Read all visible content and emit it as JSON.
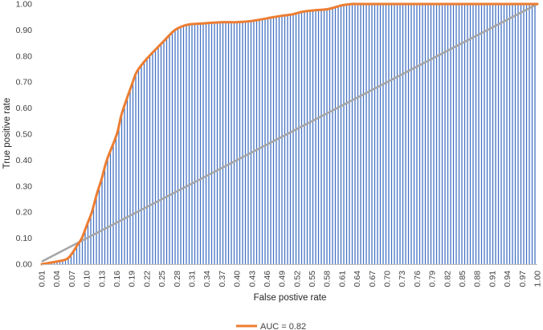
{
  "chart_data": {
    "type": "area",
    "title": "",
    "xlabel": "False postive rate",
    "ylabel": "True positive rate",
    "xlim": [
      0.01,
      1.0
    ],
    "ylim": [
      0.0,
      1.0
    ],
    "y_ticks": [
      "0.00",
      "0.10",
      "0.20",
      "0.30",
      "0.40",
      "0.50",
      "0.60",
      "0.70",
      "0.80",
      "0.90",
      "1.00"
    ],
    "x_ticks": [
      "0.01",
      "0.04",
      "0.07",
      "0.10",
      "0.13",
      "0.16",
      "0.19",
      "0.22",
      "0.25",
      "0.28",
      "0.31",
      "0.34",
      "0.37",
      "0.40",
      "0.43",
      "0.46",
      "0.49",
      "0.52",
      "0.55",
      "0.58",
      "0.61",
      "0.64",
      "0.67",
      "0.70",
      "0.73",
      "0.76",
      "0.79",
      "0.82",
      "0.85",
      "0.88",
      "0.91",
      "0.94",
      "0.97",
      "1.00"
    ],
    "series": [
      {
        "name": "AUC = 0.82",
        "role": "roc-curve",
        "color": "#ED7D31",
        "x": [
          0.01,
          0.04,
          0.06,
          0.07,
          0.08,
          0.09,
          0.1,
          0.11,
          0.12,
          0.13,
          0.14,
          0.16,
          0.17,
          0.19,
          0.2,
          0.22,
          0.25,
          0.27,
          0.28,
          0.3,
          0.33,
          0.37,
          0.4,
          0.43,
          0.46,
          0.49,
          0.51,
          0.53,
          0.55,
          0.58,
          0.6,
          0.61,
          0.63,
          0.67,
          1.0
        ],
        "y": [
          0.0,
          0.01,
          0.02,
          0.04,
          0.07,
          0.1,
          0.15,
          0.2,
          0.27,
          0.33,
          0.4,
          0.5,
          0.58,
          0.69,
          0.74,
          0.79,
          0.85,
          0.89,
          0.905,
          0.92,
          0.925,
          0.93,
          0.93,
          0.935,
          0.945,
          0.955,
          0.96,
          0.97,
          0.975,
          0.98,
          0.99,
          0.995,
          1.0,
          1.0,
          1.0
        ]
      },
      {
        "name": "",
        "role": "diagonal",
        "color": "#A5A5A5",
        "x": [
          0.01,
          1.0
        ],
        "y": [
          0.01,
          1.0
        ]
      }
    ],
    "fill": {
      "style": "vertical-hatch",
      "color": "#4472C4"
    },
    "legend": {
      "position": "bottom-center",
      "entries": [
        {
          "label": "AUC = 0.82",
          "color": "#ED7D31"
        }
      ]
    },
    "grid": false
  }
}
